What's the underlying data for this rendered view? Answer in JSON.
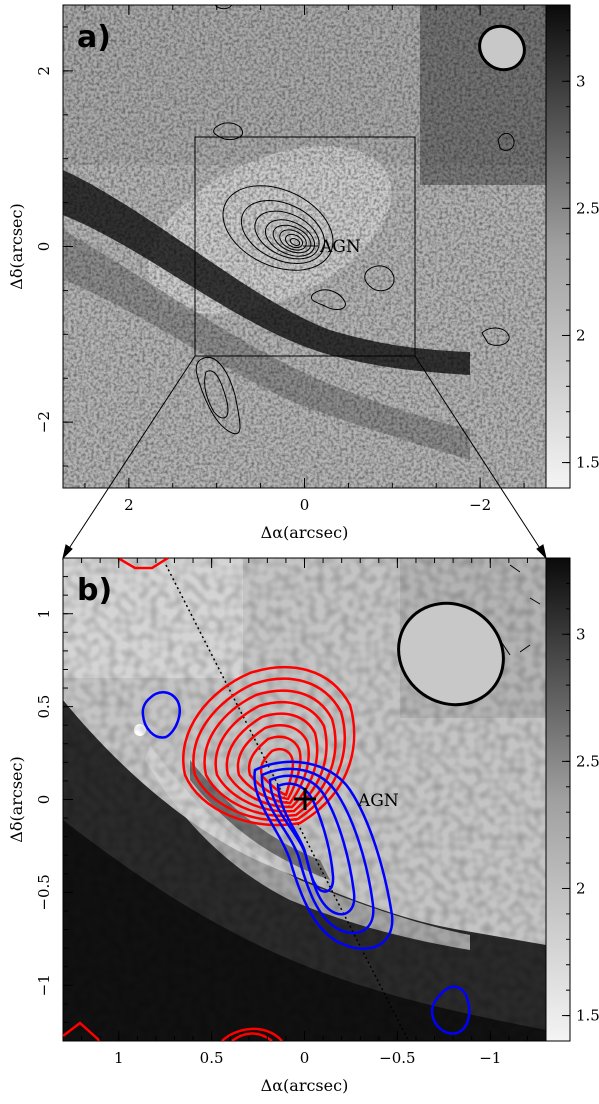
{
  "chart_data": [
    {
      "type": "heatmap",
      "panel_label": "a)",
      "xlabel": "Δα(arcsec)",
      "ylabel": "Δδ(arcsec)",
      "xlim": [
        2.75,
        -2.75
      ],
      "ylim": [
        -2.75,
        2.75
      ],
      "x_ticks": [
        2,
        0,
        -2
      ],
      "y_ticks": [
        2,
        0,
        -2
      ],
      "tick_labels_x": [
        "2",
        "0",
        "−2"
      ],
      "tick_labels_y": [
        "2",
        "0",
        "−2"
      ],
      "colorbar": {
        "range": [
          1.4,
          3.3
        ],
        "ticks": [
          3,
          2.5,
          2,
          1.5
        ],
        "tick_labels": [
          "3",
          "2.5",
          "2",
          "1.5"
        ]
      },
      "annotations": [
        {
          "text": "AGN",
          "x": -0.1,
          "y": 0
        }
      ],
      "zoom_box": {
        "x": [
          1.25,
          -1.25
        ],
        "y": [
          -1.25,
          1.25
        ]
      },
      "beam_ellipse": {
        "x": -2.3,
        "y": 2.25,
        "major": 0.52,
        "minor": 0.46
      },
      "contours": {
        "color": "#000000",
        "levels": 10
      }
    },
    {
      "type": "heatmap",
      "panel_label": "b)",
      "xlabel": "Δα(arcsec)",
      "ylabel": "Δδ(arcsec)",
      "xlim": [
        1.3,
        -1.3
      ],
      "ylim": [
        -1.3,
        1.3
      ],
      "x_ticks": [
        1,
        0.5,
        0,
        -0.5,
        -1
      ],
      "y_ticks": [
        1,
        0.5,
        0,
        -0.5,
        -1
      ],
      "tick_labels_x": [
        "1",
        "0.5",
        "0",
        "−0.5",
        "−1"
      ],
      "tick_labels_y": [
        "1",
        "0.5",
        "0",
        "−0.5",
        "−1"
      ],
      "colorbar": {
        "range": [
          1.4,
          3.3
        ],
        "ticks": [
          3,
          2.5,
          2,
          1.5
        ],
        "tick_labels": [
          "3",
          "2.5",
          "2",
          "1.5"
        ]
      },
      "annotations": [
        {
          "text": "AGN",
          "x": -0.15,
          "y": 0
        }
      ],
      "agn_marker": {
        "x": 0,
        "y": 0,
        "symbol": "cross"
      },
      "slit_line": {
        "from": [
          0.3,
          1.25
        ],
        "to": [
          -0.52,
          -1.25
        ],
        "style": "dotted"
      },
      "beam_ellipse": {
        "x": -0.85,
        "y": 0.75,
        "major": 0.46,
        "minor": 0.4
      },
      "series": [
        {
          "color": "#ff0000",
          "levels": 10
        },
        {
          "color": "#0000ff",
          "levels": 4
        }
      ]
    }
  ]
}
